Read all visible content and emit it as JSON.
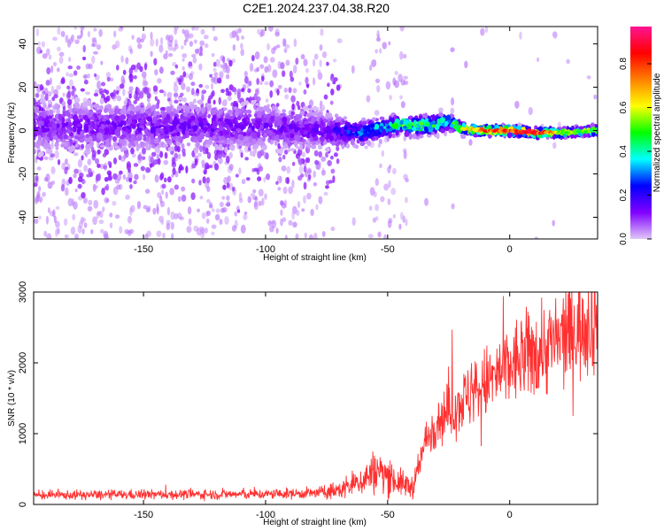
{
  "figure": {
    "title": "C2E1.2024.237.04.38.R20"
  },
  "chart_data": [
    {
      "type": "heatmap",
      "title": "C2E1.2024.237.04.38.R20",
      "xlabel": "Height of straight line (km)",
      "ylabel": "Frequency (Hz)",
      "xlim": [
        -195,
        36
      ],
      "ylim": [
        -50,
        48
      ],
      "x_ticks": [
        -150,
        -100,
        -50,
        0
      ],
      "y_ticks": [
        -40,
        -20,
        0,
        20,
        40
      ],
      "colorbar": {
        "label": "Normalized spectral amplitude",
        "range": [
          0,
          0.97
        ],
        "ticks": [
          0.0,
          0.2,
          0.4,
          0.6,
          0.8
        ],
        "colormap": [
          "#e0c8f8",
          "#8000ff",
          "#0000ff",
          "#00ffff",
          "#00ff00",
          "#ffff00",
          "#ff8000",
          "#ff0000",
          "#ff1493"
        ]
      },
      "signal_track": [
        {
          "x": -195,
          "center": 2,
          "spread": 10,
          "amplitude": 0.12
        },
        {
          "x": -150,
          "center": 2,
          "spread": 10,
          "amplitude": 0.13
        },
        {
          "x": -100,
          "center": 2,
          "spread": 9,
          "amplitude": 0.13
        },
        {
          "x": -75,
          "center": 0,
          "spread": 7,
          "amplitude": 0.15
        },
        {
          "x": -60,
          "center": -1,
          "spread": 5,
          "amplitude": 0.3
        },
        {
          "x": -45,
          "center": 3,
          "spread": 4,
          "amplitude": 0.5
        },
        {
          "x": -40,
          "center": 2,
          "spread": 4,
          "amplitude": 0.55
        },
        {
          "x": -30,
          "center": 3,
          "spread": 4,
          "amplitude": 0.45
        },
        {
          "x": -25,
          "center": 4,
          "spread": 4,
          "amplitude": 0.4
        },
        {
          "x": -20,
          "center": 1,
          "spread": 2.5,
          "amplitude": 0.6
        },
        {
          "x": -10,
          "center": 0,
          "spread": 2,
          "amplitude": 0.8
        },
        {
          "x": 0,
          "center": 0,
          "spread": 2,
          "amplitude": 0.85
        },
        {
          "x": 10,
          "center": -1,
          "spread": 2,
          "amplitude": 0.9
        },
        {
          "x": 20,
          "center": -1,
          "spread": 2,
          "amplitude": 0.6
        },
        {
          "x": 36,
          "center": 0,
          "spread": 2,
          "amplitude": 0.5
        }
      ]
    },
    {
      "type": "line",
      "xlabel": "Height of straight line (km)",
      "ylabel": "SNR (10 * v/v)",
      "xlim": [
        -195,
        36
      ],
      "ylim": [
        0,
        3000
      ],
      "x_ticks": [
        -150,
        -100,
        -50,
        0
      ],
      "y_ticks": [
        0,
        1000,
        2000,
        3000
      ],
      "color": "#ff3030",
      "x": [
        -195,
        -150,
        -100,
        -80,
        -70,
        -60,
        -55,
        -50,
        -45,
        -40,
        -38,
        -35,
        -30,
        -25,
        -20,
        -10,
        0,
        10,
        20,
        30,
        36
      ],
      "values": [
        130,
        140,
        145,
        160,
        200,
        350,
        480,
        420,
        300,
        250,
        400,
        850,
        1200,
        1300,
        1450,
        1700,
        1950,
        2150,
        2300,
        2550,
        2700
      ]
    }
  ]
}
